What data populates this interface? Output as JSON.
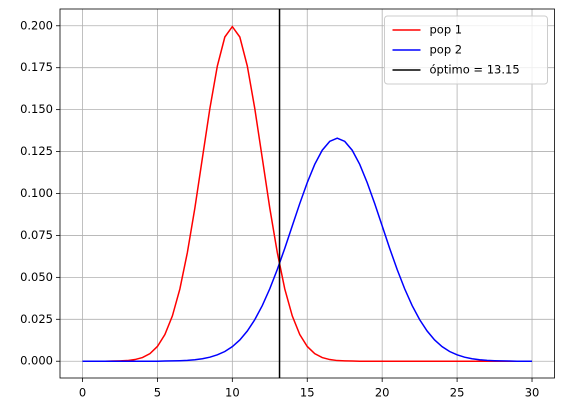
{
  "chart_data": {
    "type": "line",
    "x": [
      0,
      0.5,
      1,
      1.5,
      2,
      2.5,
      3,
      3.5,
      4,
      4.5,
      5,
      5.5,
      6,
      6.5,
      7,
      7.5,
      8,
      8.5,
      9,
      9.5,
      10,
      10.5,
      11,
      11.5,
      12,
      12.5,
      13,
      13.5,
      14,
      14.5,
      15,
      15.5,
      16,
      16.5,
      17,
      17.5,
      18,
      18.5,
      19,
      19.5,
      20,
      20.5,
      21,
      21.5,
      22,
      22.5,
      23,
      23.5,
      24,
      24.5,
      25,
      25.5,
      26,
      26.5,
      27,
      27.5,
      28,
      28.5,
      29,
      29.5,
      30
    ],
    "series": [
      {
        "name": "pop 1",
        "color": "#ff0000",
        "values": [
          0,
          0,
          0,
          0,
          0.0001,
          0.0002,
          0.0004,
          0.001,
          0.0022,
          0.0045,
          0.0088,
          0.0159,
          0.027,
          0.0431,
          0.0648,
          0.0913,
          0.121,
          0.1506,
          0.176,
          0.1933,
          0.1995,
          0.1933,
          0.176,
          0.1506,
          0.121,
          0.0913,
          0.0648,
          0.0431,
          0.027,
          0.0159,
          0.0088,
          0.0045,
          0.0022,
          0.001,
          0.0004,
          0.0002,
          0.0001,
          0,
          0,
          0,
          0,
          0,
          0,
          0,
          0,
          0,
          0,
          0,
          0,
          0,
          0,
          0,
          0,
          0,
          0,
          0,
          0,
          0,
          0,
          0,
          0
        ]
      },
      {
        "name": "pop 2",
        "color": "#0000ff",
        "values": [
          0,
          0,
          0,
          0,
          0,
          0,
          0,
          0,
          0,
          0,
          0,
          0.0001,
          0.0002,
          0.0003,
          0.0005,
          0.0009,
          0.0015,
          0.0024,
          0.0038,
          0.0058,
          0.0087,
          0.0127,
          0.018,
          0.0248,
          0.0332,
          0.0432,
          0.0547,
          0.0673,
          0.0807,
          0.094,
          0.1065,
          0.1174,
          0.1258,
          0.1311,
          0.133,
          0.1311,
          0.1258,
          0.1174,
          0.1065,
          0.094,
          0.0807,
          0.0673,
          0.0547,
          0.0432,
          0.0332,
          0.0248,
          0.018,
          0.0127,
          0.0087,
          0.0058,
          0.0038,
          0.0024,
          0.0015,
          0.0009,
          0.0005,
          0.0003,
          0.0002,
          0.0001,
          0,
          0,
          0
        ]
      }
    ],
    "vlines": [
      {
        "name": "óptimo = 13.15",
        "color": "#000000",
        "x": 13.15
      }
    ],
    "xlim": [
      -1.5,
      31.5
    ],
    "xticks": [
      0,
      5,
      10,
      15,
      20,
      25,
      30
    ],
    "ylim": [
      -0.01,
      0.21
    ],
    "yticks": [
      {
        "value": 0,
        "label": "0.000"
      },
      {
        "value": 0.025,
        "label": "0.025"
      },
      {
        "value": 0.05,
        "label": "0.050"
      },
      {
        "value": 0.075,
        "label": "0.075"
      },
      {
        "value": 0.1,
        "label": "0.100"
      },
      {
        "value": 0.125,
        "label": "0.125"
      },
      {
        "value": 0.15,
        "label": "0.150"
      },
      {
        "value": 0.175,
        "label": "0.175"
      },
      {
        "value": 0.2,
        "label": "0.200"
      }
    ],
    "grid": true,
    "legend": "upper right"
  }
}
